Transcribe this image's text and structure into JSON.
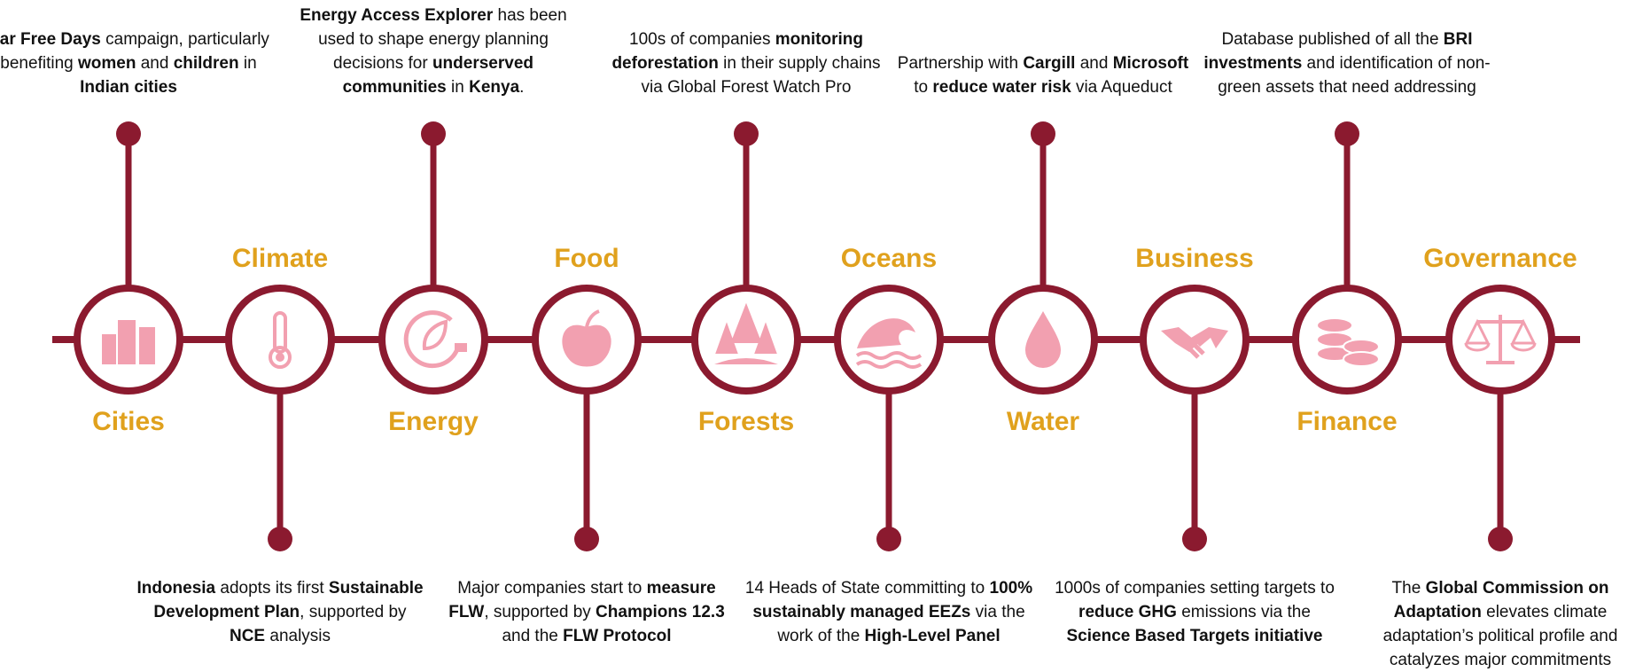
{
  "items": [
    {
      "label": "Cities",
      "description": [
        {
          "text": "Car Free Days",
          "bold": true
        },
        {
          "text": " campaign, particularly benefiting ",
          "bold": false
        },
        {
          "text": "women",
          "bold": true
        },
        {
          "text": " and ",
          "bold": false
        },
        {
          "text": "children",
          "bold": true
        },
        {
          "text": " in ",
          "bold": false
        },
        {
          "text": "Indian cities",
          "bold": true
        }
      ]
    },
    {
      "label": "Climate",
      "description": [
        {
          "text": "Indonesia",
          "bold": true
        },
        {
          "text": " adopts its first ",
          "bold": false
        },
        {
          "text": "Sustainable Development Plan",
          "bold": true
        },
        {
          "text": ", supported by ",
          "bold": false
        },
        {
          "text": "NCE",
          "bold": true
        },
        {
          "text": " analysis",
          "bold": false
        }
      ]
    },
    {
      "label": "Energy",
      "description": [
        {
          "text": "Energy Access Explorer",
          "bold": true
        },
        {
          "text": " has been used to shape energy planning decisions for ",
          "bold": false
        },
        {
          "text": "underserved communities",
          "bold": true
        },
        {
          "text": " in ",
          "bold": false
        },
        {
          "text": "Kenya",
          "bold": true
        },
        {
          "text": ".",
          "bold": false
        }
      ]
    },
    {
      "label": "Food",
      "description": [
        {
          "text": "Major companies start to ",
          "bold": false
        },
        {
          "text": "measure FLW",
          "bold": true
        },
        {
          "text": ", supported by ",
          "bold": false
        },
        {
          "text": "Champions 12.3",
          "bold": true
        },
        {
          "text": " and the ",
          "bold": false
        },
        {
          "text": "FLW Protocol",
          "bold": true
        }
      ]
    },
    {
      "label": "Forests",
      "description": [
        {
          "text": "100s of companies ",
          "bold": false
        },
        {
          "text": "monitoring deforestation",
          "bold": true
        },
        {
          "text": " in their supply chains via Global Forest Watch Pro",
          "bold": false
        }
      ]
    },
    {
      "label": "Oceans",
      "description": [
        {
          "text": "14 Heads of State committing to ",
          "bold": false
        },
        {
          "text": "100% sustainably managed EEZs",
          "bold": true
        },
        {
          "text": " via the work of the ",
          "bold": false
        },
        {
          "text": "High-Level Panel",
          "bold": true
        }
      ]
    },
    {
      "label": "Water",
      "description": [
        {
          "text": "Partnership with ",
          "bold": false
        },
        {
          "text": "Cargill",
          "bold": true
        },
        {
          "text": " and ",
          "bold": false
        },
        {
          "text": "Microsoft",
          "bold": true
        },
        {
          "text": " to ",
          "bold": false
        },
        {
          "text": "reduce water risk",
          "bold": true
        },
        {
          "text": " via Aqueduct",
          "bold": false
        }
      ]
    },
    {
      "label": "Business",
      "description": [
        {
          "text": "1000s of companies setting targets to ",
          "bold": false
        },
        {
          "text": "reduce GHG",
          "bold": true
        },
        {
          "text": " emissions via the ",
          "bold": false
        },
        {
          "text": "Science Based Targets initiative",
          "bold": true
        }
      ]
    },
    {
      "label": "Finance",
      "description": [
        {
          "text": "Database published of all the ",
          "bold": false
        },
        {
          "text": "BRI investments",
          "bold": true
        },
        {
          "text": " and identification of non-green assets that need addressing",
          "bold": false
        }
      ]
    },
    {
      "label": "Governance",
      "description": [
        {
          "text": "The ",
          "bold": false
        },
        {
          "text": "Global Commission on Adaptation",
          "bold": true
        },
        {
          "text": " elevates climate adaptation’s political profile and catalyzes major commitments",
          "bold": false
        }
      ]
    }
  ]
}
